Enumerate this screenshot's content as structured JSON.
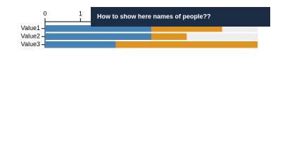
{
  "chart_data": {
    "type": "bar",
    "orientation": "horizontal",
    "stacked": true,
    "categories": [
      "Value1",
      "Value2",
      "Value3"
    ],
    "series": [
      {
        "color": "#4682b4",
        "values": [
          3,
          3,
          2
        ]
      },
      {
        "color": "#de9420",
        "values": [
          2,
          1,
          4
        ]
      }
    ],
    "xlim": [
      0,
      6
    ],
    "xticks": [
      0,
      1
    ],
    "track_color": "#eeeeee",
    "annotation": "How to show here names of people??"
  }
}
